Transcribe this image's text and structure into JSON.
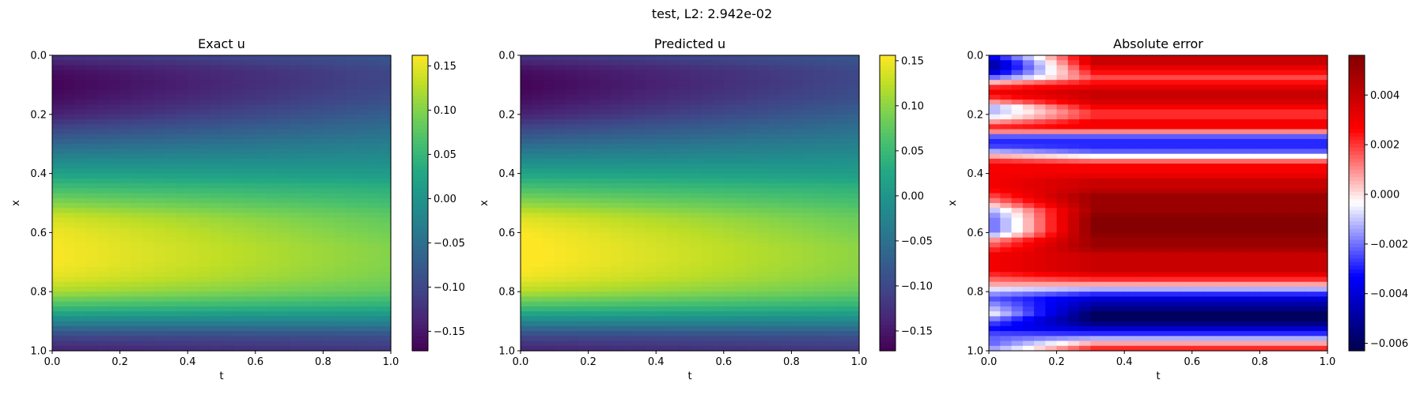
{
  "figure": {
    "suptitle": "test, L2: 2.942e-02"
  },
  "chart_data": [
    {
      "type": "heatmap",
      "title": "Exact u",
      "xlabel": "t",
      "ylabel": "x",
      "xlim": [
        0.0,
        1.0
      ],
      "ylim": [
        1.0,
        0.0
      ],
      "x_ticks": [
        "0.0",
        "0.2",
        "0.4",
        "0.6",
        "0.8",
        "1.0"
      ],
      "y_ticks": [
        "0.0",
        "0.2",
        "0.4",
        "0.6",
        "0.8",
        "1.0"
      ],
      "colormap": "viridis",
      "colorbar": {
        "min": -0.172,
        "max": 0.162,
        "ticks": [
          0.15,
          0.1,
          0.05,
          0.0,
          -0.05,
          -0.1,
          -0.15
        ],
        "tick_labels": [
          "0.15",
          "0.10",
          "0.05",
          "0.00",
          "−0.05",
          "−0.10",
          "−0.15"
        ]
      },
      "field": {
        "x": [
          0.0,
          0.05,
          0.1,
          0.15,
          0.2,
          0.25,
          0.3,
          0.35,
          0.4,
          0.45,
          0.5,
          0.55,
          0.6,
          0.65,
          0.7,
          0.75,
          0.8,
          0.85,
          0.9,
          0.95,
          1.0
        ],
        "u_t0": [
          -0.12,
          -0.16,
          -0.17,
          -0.16,
          -0.14,
          -0.1,
          -0.06,
          -0.02,
          0.02,
          0.06,
          0.1,
          0.14,
          0.155,
          0.16,
          0.16,
          0.15,
          0.12,
          0.06,
          -0.02,
          -0.1,
          -0.14
        ],
        "u_t1": [
          -0.08,
          -0.1,
          -0.1,
          -0.09,
          -0.07,
          -0.05,
          -0.03,
          -0.01,
          0.01,
          0.04,
          0.06,
          0.08,
          0.09,
          0.1,
          0.1,
          0.095,
          0.08,
          0.04,
          -0.02,
          -0.09,
          -0.12
        ]
      }
    },
    {
      "type": "heatmap",
      "title": "Predicted u",
      "xlabel": "t",
      "ylabel": "x",
      "xlim": [
        0.0,
        1.0
      ],
      "ylim": [
        1.0,
        0.0
      ],
      "x_ticks": [
        "0.0",
        "0.2",
        "0.4",
        "0.6",
        "0.8",
        "1.0"
      ],
      "y_ticks": [
        "0.0",
        "0.2",
        "0.4",
        "0.6",
        "0.8",
        "1.0"
      ],
      "colormap": "viridis",
      "colorbar": {
        "min": -0.172,
        "max": 0.156,
        "ticks": [
          0.15,
          0.1,
          0.05,
          0.0,
          -0.05,
          -0.1,
          -0.15
        ],
        "tick_labels": [
          "0.15",
          "0.10",
          "0.05",
          "0.00",
          "−0.05",
          "−0.10",
          "−0.15"
        ]
      },
      "field": {
        "x": [
          0.0,
          0.05,
          0.1,
          0.15,
          0.2,
          0.25,
          0.3,
          0.35,
          0.4,
          0.45,
          0.5,
          0.55,
          0.6,
          0.65,
          0.7,
          0.75,
          0.8,
          0.85,
          0.9,
          0.95,
          1.0
        ],
        "u_t0": [
          -0.12,
          -0.16,
          -0.17,
          -0.16,
          -0.14,
          -0.1,
          -0.06,
          -0.02,
          0.02,
          0.06,
          0.1,
          0.14,
          0.155,
          0.16,
          0.16,
          0.15,
          0.12,
          0.06,
          -0.02,
          -0.1,
          -0.14
        ],
        "u_t1": [
          -0.08,
          -0.1,
          -0.1,
          -0.09,
          -0.07,
          -0.05,
          -0.03,
          -0.01,
          0.01,
          0.04,
          0.06,
          0.08,
          0.09,
          0.1,
          0.1,
          0.095,
          0.08,
          0.04,
          -0.02,
          -0.09,
          -0.12
        ]
      }
    },
    {
      "type": "heatmap",
      "title": "Absolute error",
      "xlabel": "t",
      "ylabel": "x",
      "xlim": [
        0.0,
        1.0
      ],
      "ylim": [
        1.0,
        0.0
      ],
      "x_ticks": [
        "0.0",
        "0.2",
        "0.4",
        "0.6",
        "0.8",
        "1.0"
      ],
      "y_ticks": [
        "0.0",
        "0.2",
        "0.4",
        "0.6",
        "0.8",
        "1.0"
      ],
      "colormap": "seismic",
      "colorbar": {
        "min": -0.0063,
        "max": 0.0056,
        "ticks": [
          0.004,
          0.002,
          0.0,
          -0.002,
          -0.004,
          -0.006
        ],
        "tick_labels": [
          "0.004",
          "0.002",
          "0.000",
          "−0.002",
          "−0.004",
          "−0.006"
        ]
      },
      "field": {
        "x": [
          0.0,
          0.025,
          0.05,
          0.075,
          0.1,
          0.125,
          0.15,
          0.175,
          0.2,
          0.225,
          0.25,
          0.275,
          0.3,
          0.325,
          0.35,
          0.375,
          0.4,
          0.425,
          0.45,
          0.475,
          0.5,
          0.525,
          0.55,
          0.575,
          0.6,
          0.625,
          0.65,
          0.675,
          0.7,
          0.725,
          0.75,
          0.775,
          0.8,
          0.825,
          0.85,
          0.875,
          0.9,
          0.925,
          0.95,
          0.975,
          1.0
        ],
        "err_t0": [
          -0.003,
          -0.005,
          -0.005,
          -0.002,
          0.002,
          0.003,
          0.002,
          -0.001,
          -0.001,
          0.001,
          0.003,
          -0.002,
          -0.003,
          -0.001,
          0.002,
          0.003,
          0.003,
          0.003,
          0.003,
          0.002,
          0.001,
          -0.001,
          -0.002,
          -0.002,
          -0.002,
          0.001,
          0.002,
          0.003,
          0.003,
          0.003,
          0.002,
          0.001,
          -0.001,
          -0.002,
          -0.001,
          0.0,
          -0.002,
          -0.003,
          -0.002,
          -0.002,
          -0.001
        ],
        "err_t1": [
          0.004,
          0.004,
          0.003,
          0.002,
          0.003,
          0.004,
          0.004,
          0.003,
          0.002,
          0.003,
          0.003,
          -0.002,
          -0.003,
          -0.002,
          0.001,
          0.003,
          0.003,
          0.004,
          0.004,
          0.005,
          0.005,
          0.005,
          0.0055,
          0.0055,
          0.0055,
          0.005,
          0.005,
          0.004,
          0.004,
          0.004,
          0.003,
          0.001,
          -0.002,
          -0.004,
          -0.005,
          -0.006,
          -0.006,
          -0.004,
          -0.002,
          0.001,
          0.003
        ]
      }
    }
  ]
}
